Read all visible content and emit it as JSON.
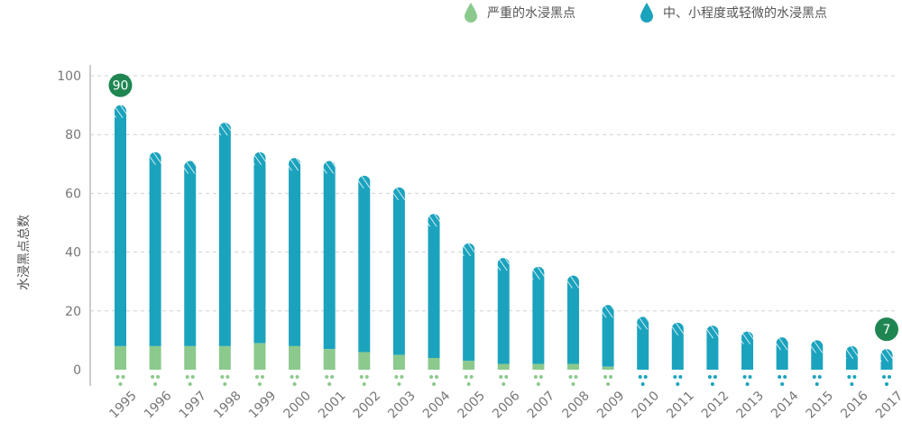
{
  "legend": {
    "serious_label": "严重的水浸黑点",
    "minor_label": "中、小程度或轻微的水浸黑点"
  },
  "colors": {
    "serious": "#8bc98c",
    "minor": "#1ba3be",
    "badge": "#1f8652",
    "grid": "#d0d0d0",
    "axis": "#999999"
  },
  "chart_data": {
    "type": "bar",
    "stacked": true,
    "ylabel": "水浸黑点总数",
    "xlabel": "",
    "ylim": [
      0,
      100
    ],
    "yticks": [
      0,
      20,
      40,
      60,
      80,
      100
    ],
    "grid": true,
    "legend_position": "top-right",
    "categories": [
      "1995",
      "1996",
      "1997",
      "1998",
      "1999",
      "2000",
      "2001",
      "2002",
      "2003",
      "2004",
      "2005",
      "2006",
      "2007",
      "2008",
      "2009",
      "2010",
      "2011",
      "2012",
      "2013",
      "2014",
      "2015",
      "2016",
      "2017"
    ],
    "series": [
      {
        "name": "严重的水浸黑点",
        "color": "#8bc98c",
        "values": [
          8,
          8,
          8,
          8,
          9,
          8,
          7,
          6,
          5,
          4,
          3,
          2,
          2,
          2,
          1,
          0,
          0,
          0,
          0,
          0,
          0,
          0,
          0
        ]
      },
      {
        "name": "中、小程度或轻微的水浸黑点",
        "color": "#1ba3be",
        "values": [
          82,
          66,
          63,
          76,
          65,
          64,
          64,
          60,
          57,
          49,
          40,
          36,
          33,
          30,
          21,
          18,
          16,
          15,
          13,
          11,
          10,
          8,
          7
        ]
      }
    ],
    "totals": [
      90,
      74,
      71,
      84,
      74,
      72,
      71,
      66,
      62,
      53,
      43,
      38,
      35,
      32,
      22,
      18,
      16,
      15,
      13,
      11,
      10,
      8,
      7
    ],
    "annotations": [
      {
        "category": "1995",
        "label": "90"
      },
      {
        "category": "2017",
        "label": "7"
      }
    ]
  }
}
